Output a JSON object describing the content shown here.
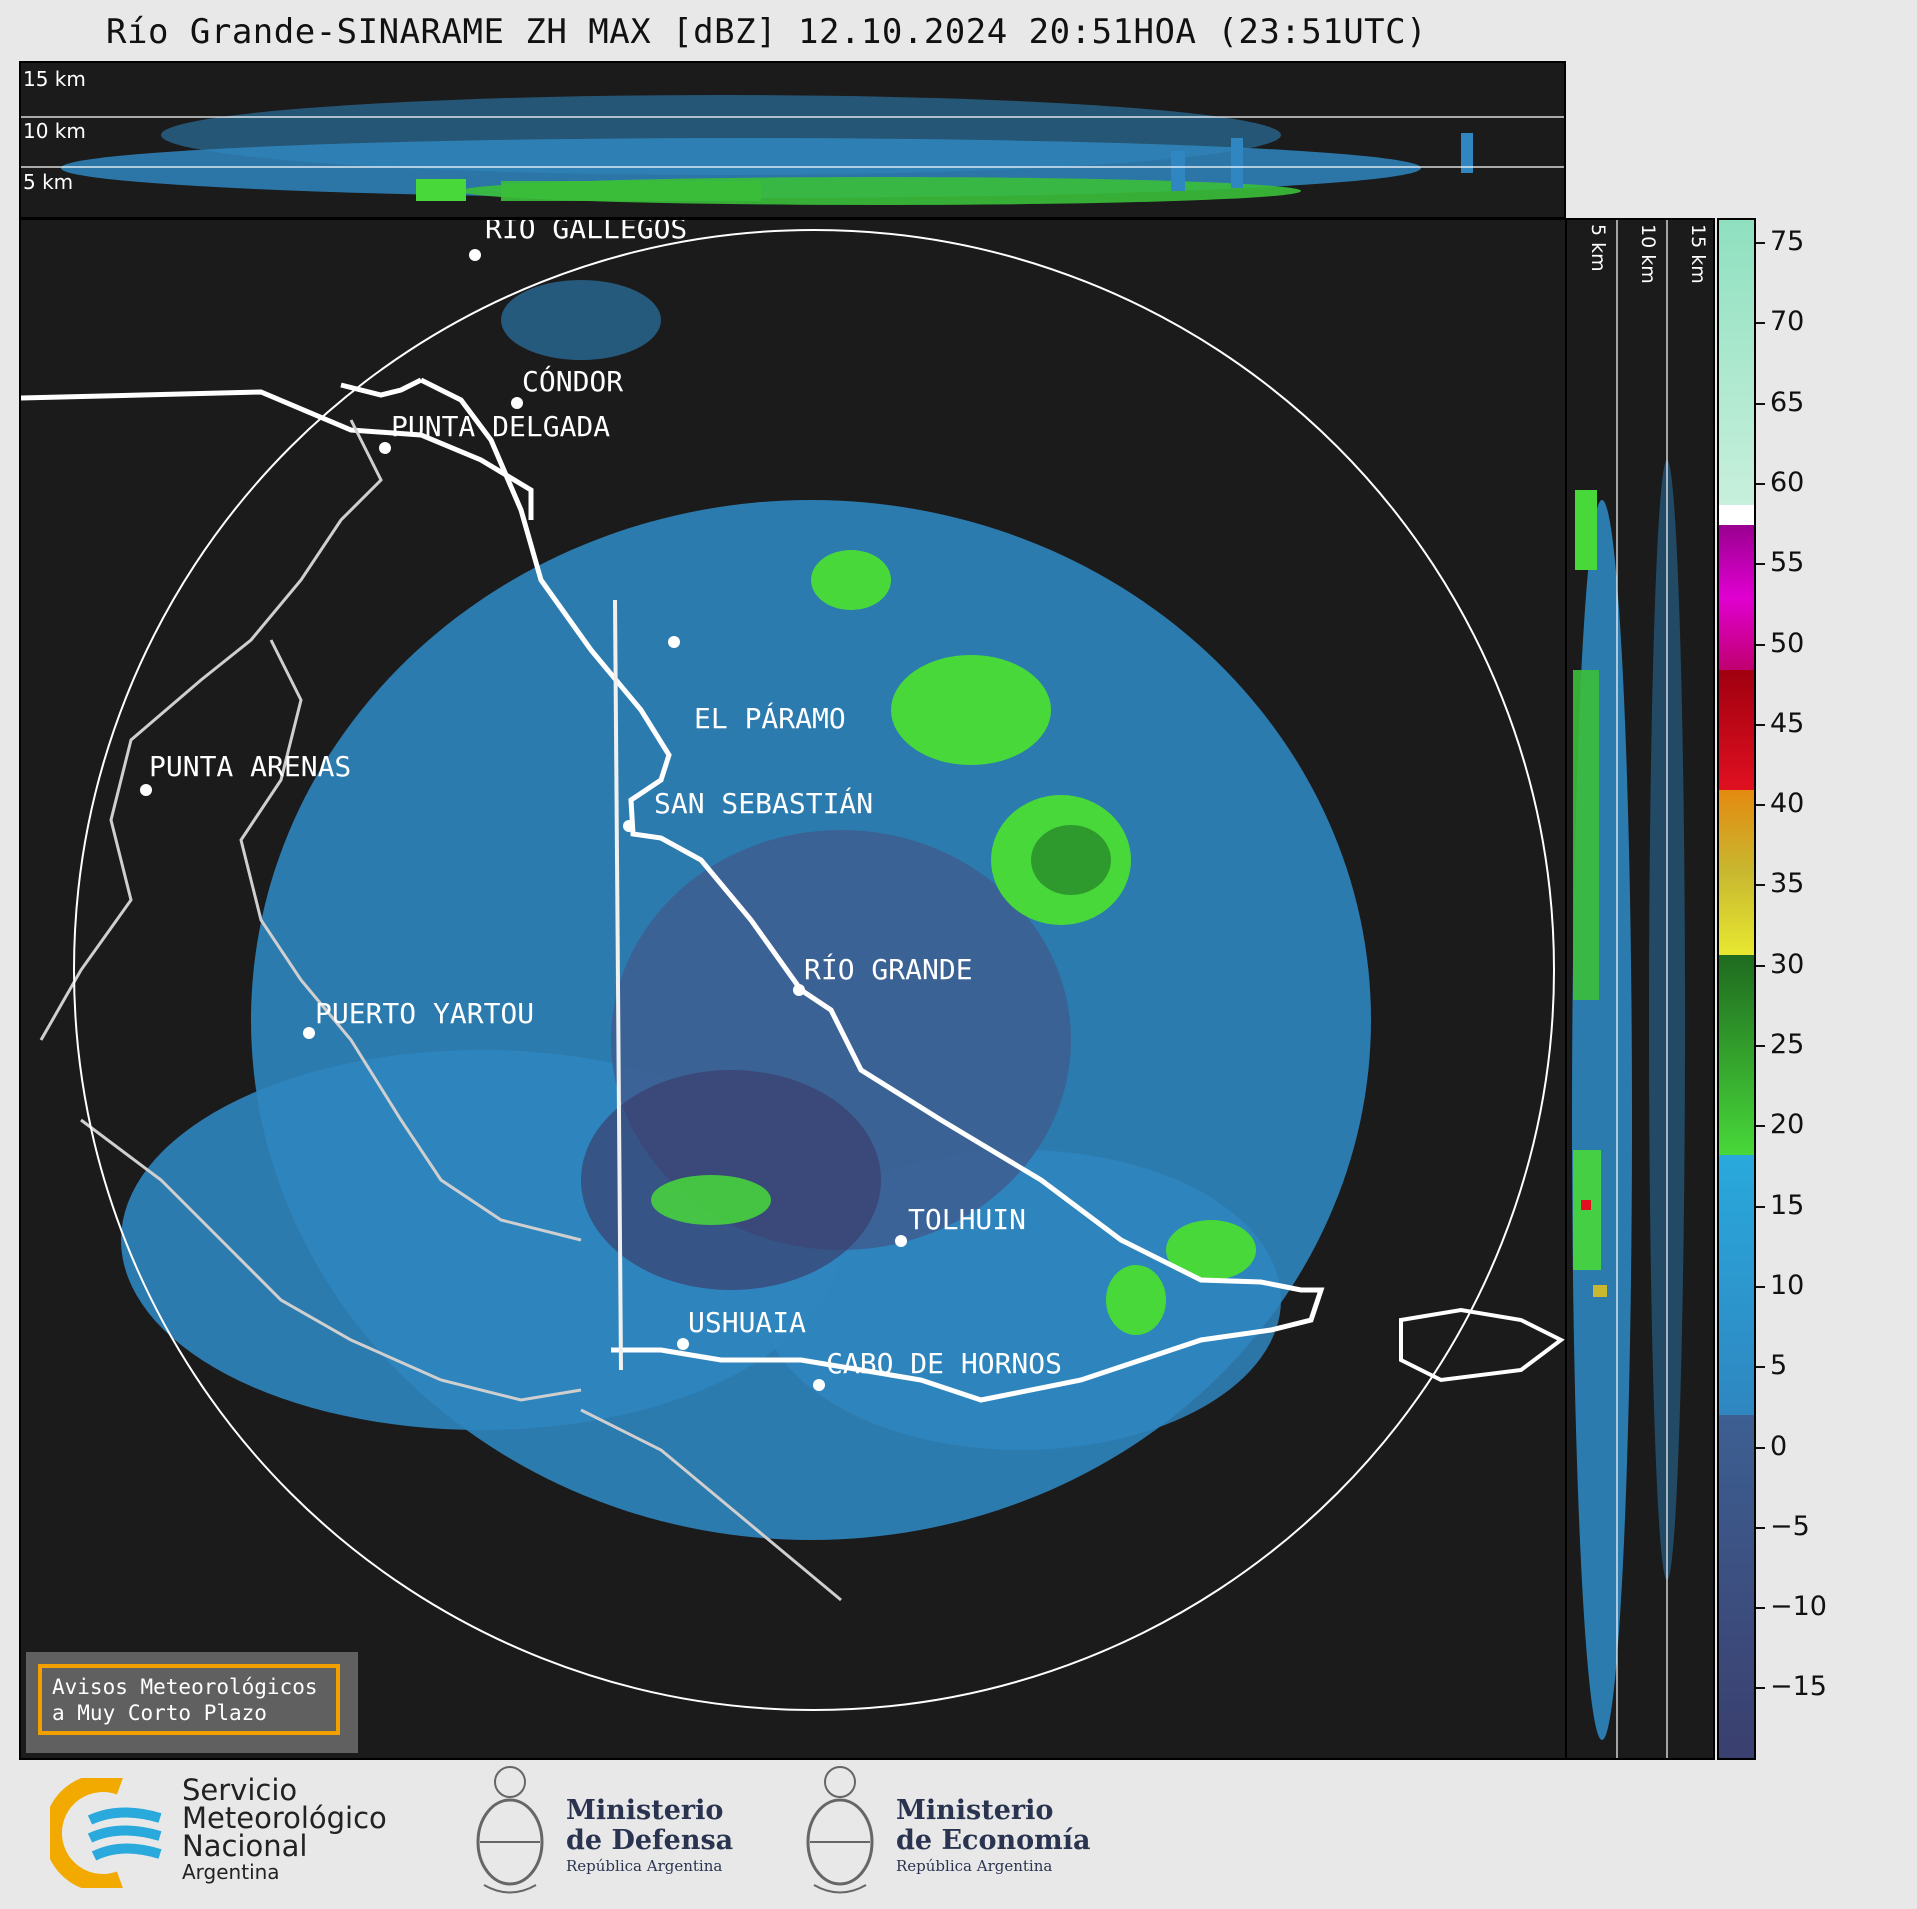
{
  "title": "Río Grande-SINARAME ZH MAX [dBZ] 12.10.2024 20:51HOA (23:51UTC)",
  "top_panel": {
    "levels": [
      "15 km",
      "10 km",
      "5 km"
    ]
  },
  "side_panel": {
    "levels": [
      "5 km",
      "10 km",
      "15 km"
    ]
  },
  "cities": [
    {
      "id": "rio-gallegos",
      "label": "RÍO GALLEGOS"
    },
    {
      "id": "condor",
      "label": "CÓNDOR"
    },
    {
      "id": "punta-delgada",
      "label": "PUNTA DELGADA"
    },
    {
      "id": "el-paramo",
      "label": "EL PÁRAMO"
    },
    {
      "id": "punta-arenas",
      "label": "PUNTA ARENAS"
    },
    {
      "id": "san-sebastian",
      "label": "SAN SEBASTIÁN"
    },
    {
      "id": "rio-grande",
      "label": "RÍO GRANDE"
    },
    {
      "id": "puerto-yartou",
      "label": "PUERTO YARTOU"
    },
    {
      "id": "tolhuin",
      "label": "TOLHUIN"
    },
    {
      "id": "ushuaia",
      "label": "USHUAIA"
    },
    {
      "id": "cabo-de-hornos",
      "label": "CABO DE HORNOS"
    }
  ],
  "colorbar": {
    "unit": "dBZ",
    "ticks": [
      "75",
      "70",
      "65",
      "60",
      "55",
      "50",
      "45",
      "40",
      "35",
      "30",
      "25",
      "20",
      "15",
      "10",
      "5",
      "0",
      "−5",
      "−10",
      "−15"
    ],
    "colors": {
      "low": "#3a3f6e",
      "mid_low": "#3d5f92",
      "blue": "#2f86c0",
      "light_blue": "#29a9dc",
      "green": "#48d83a",
      "dark_green": "#1f7a1f",
      "yellow": "#e8e830",
      "olive": "#c8b830",
      "orange": "#e48a10",
      "red": "#e01020",
      "dark_red": "#a00010",
      "magenta": "#d000c0",
      "purple": "#9a0090",
      "white": "#ffffff",
      "mint": "#9ae4c0"
    }
  },
  "warning_box": {
    "line1": "Avisos Meteorológicos",
    "line2": "a Muy Corto Plazo"
  },
  "logos": {
    "smn": {
      "line1": "Servicio",
      "line2": "Meteorológico",
      "line3": "Nacional",
      "line4": "Argentina"
    },
    "defensa": {
      "line1": "Ministerio",
      "line2": "de Defensa",
      "line3": "República Argentina"
    },
    "economia": {
      "line1": "Ministerio",
      "line2": "de Economía",
      "line3": "República Argentina"
    }
  }
}
